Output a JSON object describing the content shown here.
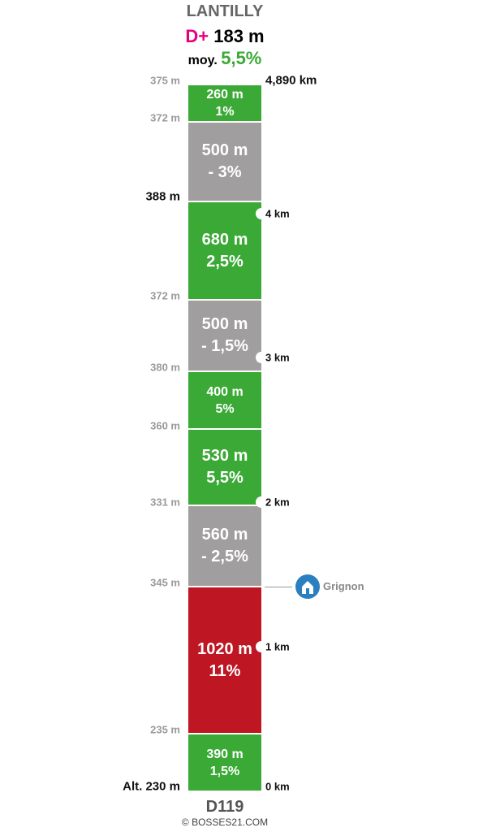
{
  "header": {
    "title": "LANTILLY",
    "gain_label": "D+",
    "gain": "183 m",
    "avg_label": "moy.",
    "avg": "5,5%"
  },
  "segments": [
    {
      "length": "260 m",
      "grade": "1%",
      "color": "#3aa935"
    },
    {
      "length": "500 m",
      "grade": "- 3%",
      "color": "#a09e9f"
    },
    {
      "length": "680 m",
      "grade": "2,5%",
      "color": "#3aa935"
    },
    {
      "length": "500 m",
      "grade": "- 1,5%",
      "color": "#a09e9f"
    },
    {
      "length": "400 m",
      "grade": "5%",
      "color": "#3aa935"
    },
    {
      "length": "530 m",
      "grade": "5,5%",
      "color": "#3aa935"
    },
    {
      "length": "560 m",
      "grade": "- 2,5%",
      "color": "#a09e9f"
    },
    {
      "length": "1020 m",
      "grade": "11%",
      "color": "#be1622"
    },
    {
      "length": "390 m",
      "grade": "1,5%",
      "color": "#3aa935"
    }
  ],
  "altitudes": [
    "375 m",
    "372 m",
    "388 m",
    "372 m",
    "380 m",
    "360 m",
    "331 m",
    "345 m",
    "235 m",
    "Alt. 230 m"
  ],
  "distances": [
    "4,890 km",
    "4 km",
    "3 km",
    "2 km",
    "1 km",
    "0 km"
  ],
  "landmark": "Grignon",
  "footer": {
    "road": "D119",
    "credit": "© BOSSES21.COM"
  }
}
